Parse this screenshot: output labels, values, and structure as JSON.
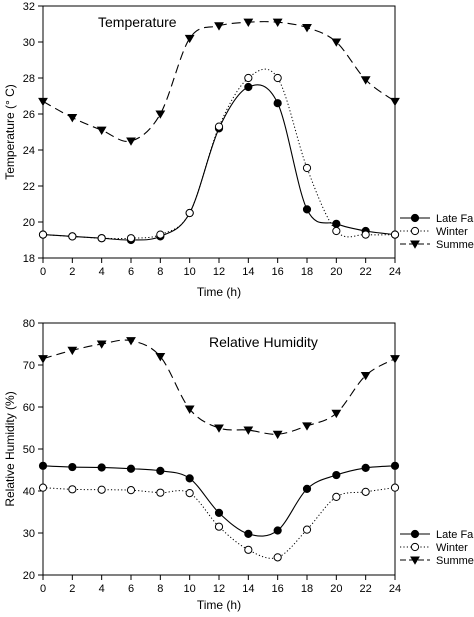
{
  "chart_data": [
    {
      "type": "line",
      "title": "Temperature",
      "xlabel": "Time (h)",
      "ylabel": "Temperature (° C)",
      "xlim": [
        0,
        24
      ],
      "ylim": [
        18,
        32
      ],
      "xticks": [
        0,
        2,
        4,
        6,
        8,
        10,
        12,
        14,
        16,
        18,
        20,
        22,
        24
      ],
      "yticks": [
        18,
        20,
        22,
        24,
        26,
        28,
        30,
        32
      ],
      "grid": false,
      "legend": "bottom-right",
      "x": [
        0,
        2,
        4,
        6,
        8,
        10,
        12,
        14,
        16,
        18,
        20,
        22,
        24
      ],
      "series": [
        {
          "name": "Late Fall",
          "style": "solid",
          "marker": "filled-circle",
          "values": [
            19.3,
            19.2,
            19.1,
            19.0,
            19.2,
            20.5,
            25.2,
            27.5,
            26.6,
            20.7,
            19.9,
            19.5,
            19.3
          ]
        },
        {
          "name": "Winter",
          "style": "dotted",
          "marker": "open-circle",
          "values": [
            19.3,
            19.2,
            19.1,
            19.1,
            19.3,
            20.5,
            25.3,
            28.0,
            28.0,
            23.0,
            19.5,
            19.3,
            19.3
          ]
        },
        {
          "name": "Summer",
          "style": "dashed",
          "marker": "filled-triangle-down",
          "values": [
            26.7,
            25.8,
            25.1,
            24.5,
            26.0,
            30.2,
            30.9,
            31.1,
            31.1,
            30.8,
            30.0,
            27.9,
            26.7
          ]
        }
      ]
    },
    {
      "type": "line",
      "title": "Relative Humidity",
      "xlabel": "Time (h)",
      "ylabel": "Relative Humidity (%)",
      "xlim": [
        0,
        24
      ],
      "ylim": [
        20,
        80
      ],
      "xticks": [
        0,
        2,
        4,
        6,
        8,
        10,
        12,
        14,
        16,
        18,
        20,
        22,
        24
      ],
      "yticks": [
        20,
        30,
        40,
        50,
        60,
        70,
        80
      ],
      "grid": false,
      "legend": "bottom-right",
      "x": [
        0,
        2,
        4,
        6,
        8,
        10,
        12,
        14,
        16,
        18,
        20,
        22,
        24
      ],
      "series": [
        {
          "name": "Late Fall",
          "style": "solid",
          "marker": "filled-circle",
          "values": [
            46.0,
            45.7,
            45.6,
            45.3,
            44.8,
            43.0,
            34.8,
            29.8,
            30.6,
            40.5,
            43.8,
            45.5,
            46.0
          ]
        },
        {
          "name": "Winter",
          "style": "dotted",
          "marker": "open-circle",
          "values": [
            40.8,
            40.4,
            40.3,
            40.2,
            39.6,
            39.5,
            31.5,
            26.0,
            24.2,
            30.8,
            38.6,
            39.8,
            40.8
          ]
        },
        {
          "name": "Summer",
          "style": "dashed",
          "marker": "filled-triangle-down",
          "values": [
            71.5,
            73.5,
            75.0,
            75.8,
            72.0,
            59.5,
            55.0,
            54.5,
            53.5,
            55.5,
            58.5,
            67.5,
            71.5
          ]
        }
      ]
    }
  ]
}
